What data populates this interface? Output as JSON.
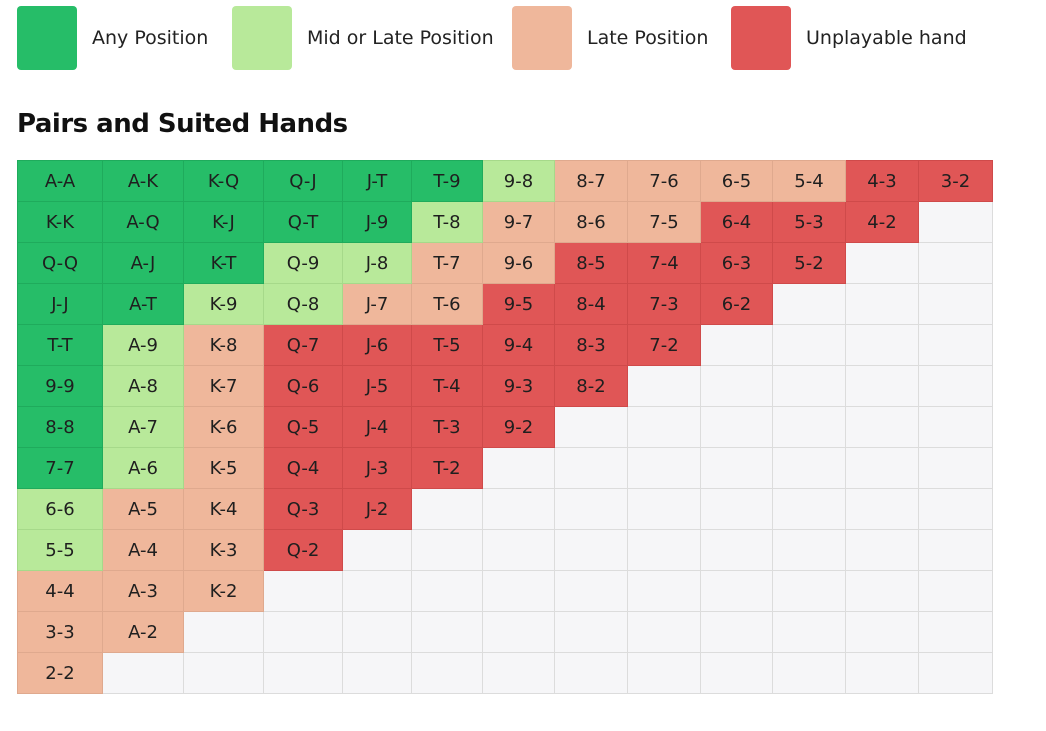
{
  "legend": [
    {
      "label": "Any Position",
      "category": "any",
      "color": "#26bd68"
    },
    {
      "label": "Mid or Late Position",
      "category": "mid",
      "color": "#b8e99a"
    },
    {
      "label": "Late Position",
      "category": "late",
      "color": "#efb79b"
    },
    {
      "label": "Unplayable hand",
      "category": "unp",
      "color": "#e05656"
    }
  ],
  "title": "Pairs and Suited Hands",
  "grid": {
    "rows": [
      [
        [
          "A-A",
          "any"
        ],
        [
          "A-K",
          "any"
        ],
        [
          "K-Q",
          "any"
        ],
        [
          "Q-J",
          "any"
        ],
        [
          "J-T",
          "any"
        ],
        [
          "T-9",
          "any"
        ],
        [
          "9-8",
          "mid"
        ],
        [
          "8-7",
          "late"
        ],
        [
          "7-6",
          "late"
        ],
        [
          "6-5",
          "late"
        ],
        [
          "5-4",
          "late"
        ],
        [
          "4-3",
          "unp"
        ],
        [
          "3-2",
          "unp"
        ]
      ],
      [
        [
          "K-K",
          "any"
        ],
        [
          "A-Q",
          "any"
        ],
        [
          "K-J",
          "any"
        ],
        [
          "Q-T",
          "any"
        ],
        [
          "J-9",
          "any"
        ],
        [
          "T-8",
          "mid"
        ],
        [
          "9-7",
          "late"
        ],
        [
          "8-6",
          "late"
        ],
        [
          "7-5",
          "late"
        ],
        [
          "6-4",
          "unp"
        ],
        [
          "5-3",
          "unp"
        ],
        [
          "4-2",
          "unp"
        ]
      ],
      [
        [
          "Q-Q",
          "any"
        ],
        [
          "A-J",
          "any"
        ],
        [
          "K-T",
          "any"
        ],
        [
          "Q-9",
          "mid"
        ],
        [
          "J-8",
          "mid"
        ],
        [
          "T-7",
          "late"
        ],
        [
          "9-6",
          "late"
        ],
        [
          "8-5",
          "unp"
        ],
        [
          "7-4",
          "unp"
        ],
        [
          "6-3",
          "unp"
        ],
        [
          "5-2",
          "unp"
        ]
      ],
      [
        [
          "J-J",
          "any"
        ],
        [
          "A-T",
          "any"
        ],
        [
          "K-9",
          "mid"
        ],
        [
          "Q-8",
          "mid"
        ],
        [
          "J-7",
          "late"
        ],
        [
          "T-6",
          "late"
        ],
        [
          "9-5",
          "unp"
        ],
        [
          "8-4",
          "unp"
        ],
        [
          "7-3",
          "unp"
        ],
        [
          "6-2",
          "unp"
        ]
      ],
      [
        [
          "T-T",
          "any"
        ],
        [
          "A-9",
          "mid"
        ],
        [
          "K-8",
          "late"
        ],
        [
          "Q-7",
          "unp"
        ],
        [
          "J-6",
          "unp"
        ],
        [
          "T-5",
          "unp"
        ],
        [
          "9-4",
          "unp"
        ],
        [
          "8-3",
          "unp"
        ],
        [
          "7-2",
          "unp"
        ]
      ],
      [
        [
          "9-9",
          "any"
        ],
        [
          "A-8",
          "mid"
        ],
        [
          "K-7",
          "late"
        ],
        [
          "Q-6",
          "unp"
        ],
        [
          "J-5",
          "unp"
        ],
        [
          "T-4",
          "unp"
        ],
        [
          "9-3",
          "unp"
        ],
        [
          "8-2",
          "unp"
        ]
      ],
      [
        [
          "8-8",
          "any"
        ],
        [
          "A-7",
          "mid"
        ],
        [
          "K-6",
          "late"
        ],
        [
          "Q-5",
          "unp"
        ],
        [
          "J-4",
          "unp"
        ],
        [
          "T-3",
          "unp"
        ],
        [
          "9-2",
          "unp"
        ]
      ],
      [
        [
          "7-7",
          "any"
        ],
        [
          "A-6",
          "mid"
        ],
        [
          "K-5",
          "late"
        ],
        [
          "Q-4",
          "unp"
        ],
        [
          "J-3",
          "unp"
        ],
        [
          "T-2",
          "unp"
        ]
      ],
      [
        [
          "6-6",
          "mid"
        ],
        [
          "A-5",
          "late"
        ],
        [
          "K-4",
          "late"
        ],
        [
          "Q-3",
          "unp"
        ],
        [
          "J-2",
          "unp"
        ]
      ],
      [
        [
          "5-5",
          "mid"
        ],
        [
          "A-4",
          "late"
        ],
        [
          "K-3",
          "late"
        ],
        [
          "Q-2",
          "unp"
        ]
      ],
      [
        [
          "4-4",
          "late"
        ],
        [
          "A-3",
          "late"
        ],
        [
          "K-2",
          "late"
        ]
      ],
      [
        [
          "3-3",
          "late"
        ],
        [
          "A-2",
          "late"
        ]
      ],
      [
        [
          "2-2",
          "late"
        ]
      ]
    ]
  }
}
